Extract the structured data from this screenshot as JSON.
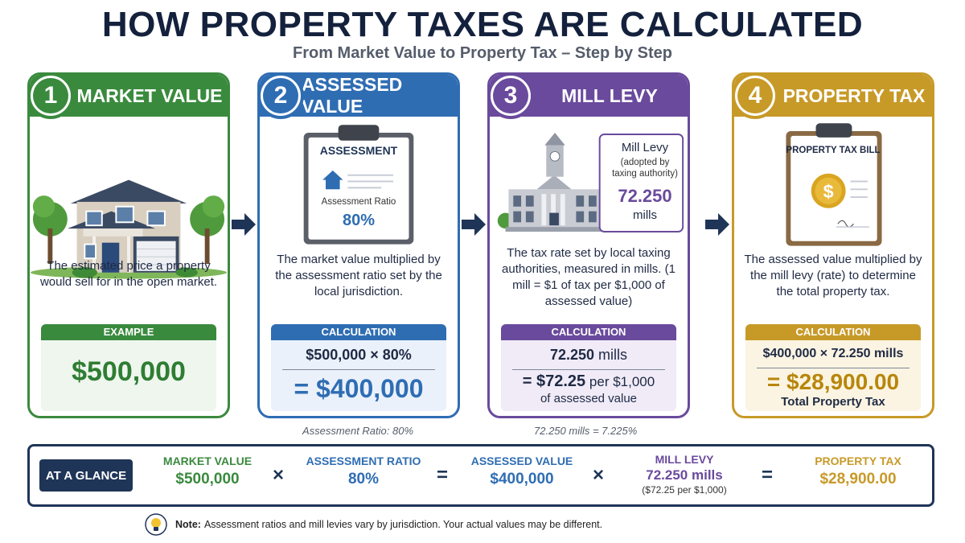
{
  "title": "HOW PROPERTY TAXES ARE CALCULATED",
  "subtitle": "From Market Value to Property Tax – Step by Step",
  "steps": [
    {
      "num": "1",
      "title": "MARKET VALUE",
      "desc": "The estimated price a property would sell for in the open market.",
      "calc_label": "EXAMPLE",
      "value": "$500,000"
    },
    {
      "num": "2",
      "title": "ASSESSED VALUE",
      "clipboard_title": "ASSESSMENT",
      "clipboard_ratio_label": "Assessment Ratio",
      "clipboard_ratio": "80%",
      "desc": "The market value multiplied by the assessment ratio set by the local jurisdiction.",
      "calc_label": "CALCULATION",
      "formula": "$500,000 × 80%",
      "result": "= $400,000",
      "footnote": "Assessment Ratio: 80%"
    },
    {
      "num": "3",
      "title": "MILL LEVY",
      "box_title": "Mill Levy",
      "box_sub": "(adopted by taxing authority)",
      "box_value": "72.250",
      "box_unit": "mills",
      "desc": "The tax rate set by local taxing authorities, measured in mills. (1 mill = $1 of tax per $1,000 of assessed value)",
      "calc_label": "CALCULATION",
      "formula_num": "72.250",
      "formula_unit": "mills",
      "result_eq": "= $72.25",
      "result_rest": "per $1,000",
      "result_sub": "of assessed value",
      "footnote": "72.250 mills = 7.225%"
    },
    {
      "num": "4",
      "title": "PROPERTY TAX",
      "bill_title": "PROPERTY TAX BILL",
      "desc": "The assessed value multiplied by the mill levy (rate) to determine the total property tax.",
      "calc_label": "CALCULATION",
      "formula": "$400,000 × 72.250 mills",
      "result": "= $28,900.00",
      "result_sub": "Total Property Tax"
    }
  ],
  "glance": {
    "label": "AT A GLANCE",
    "items": [
      {
        "label": "MARKET VALUE",
        "value": "$500,000",
        "color": "#3a8a3e"
      },
      {
        "label": "ASSESSMENT RATIO",
        "value": "80%",
        "color": "#2f6db3"
      },
      {
        "label": "ASSESSED VALUE",
        "value": "$400,000",
        "color": "#2f6db3"
      },
      {
        "label": "MILL LEVY",
        "value": "72.250 mills",
        "sub": "($72.25 per $1,000)",
        "color": "#6a4a9c"
      },
      {
        "label": "PROPERTY TAX",
        "value": "$28,900.00",
        "color": "#c79a28"
      }
    ],
    "ops": [
      "×",
      "=",
      "×",
      "="
    ]
  },
  "note": {
    "bold": "Note:",
    "text": "Assessment ratios and mill levies vary by jurisdiction. Your actual values may be different."
  },
  "colors": {
    "green": "#3a8a3e",
    "blue": "#2f6db3",
    "purple": "#6a4a9c",
    "gold": "#c79a28",
    "navy": "#1f3557"
  }
}
